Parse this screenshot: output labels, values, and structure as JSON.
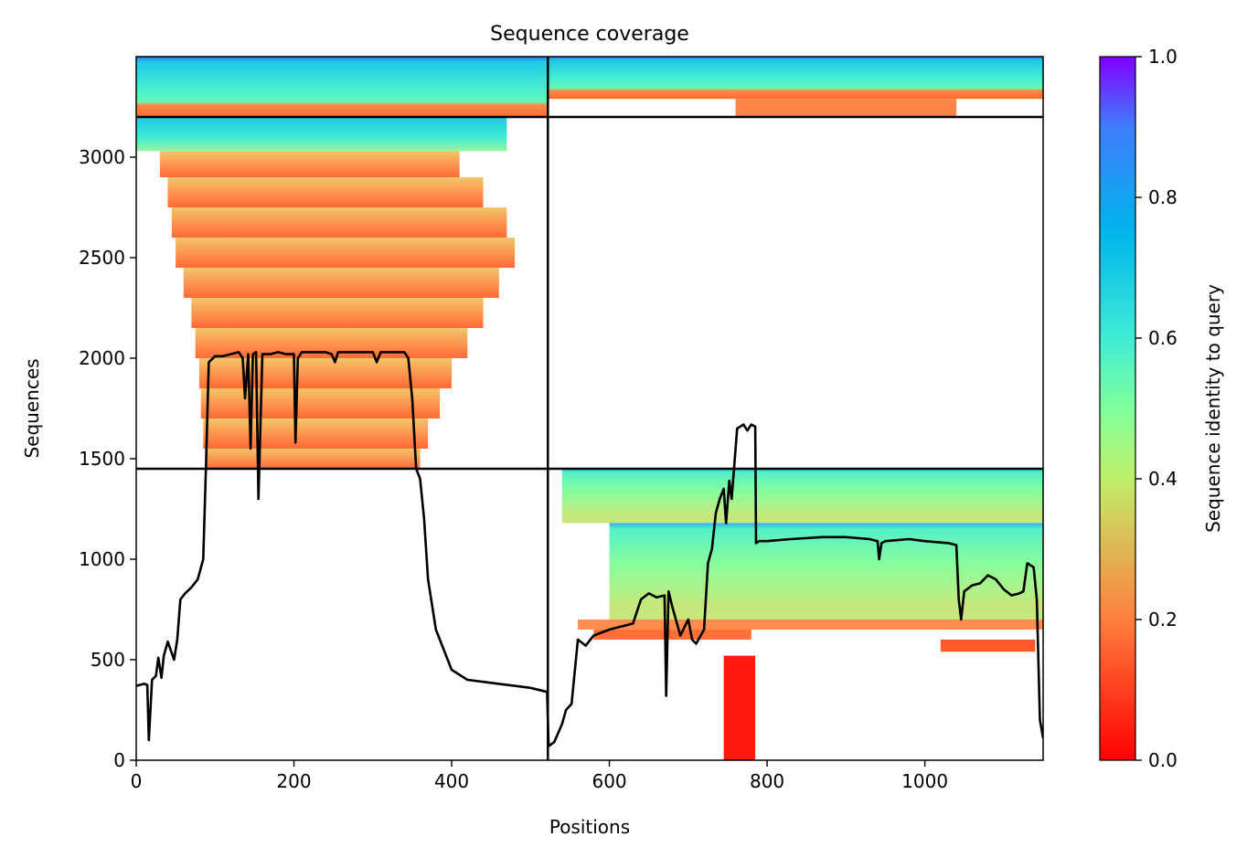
{
  "chart_data": {
    "type": "heatmap",
    "title": "Sequence coverage",
    "xlabel": "Positions",
    "ylabel": "Sequences",
    "xlim": [
      0,
      1150
    ],
    "ylim": [
      0,
      3500
    ],
    "xticks": [
      0,
      200,
      400,
      600,
      800,
      1000
    ],
    "yticks": [
      0,
      500,
      1000,
      1500,
      2000,
      2500,
      3000
    ],
    "grid": false,
    "colorbar": {
      "label": "Sequence identity to query",
      "range": [
        0.0,
        1.0
      ],
      "ticks": [
        "0.0",
        "0.2",
        "0.4",
        "0.6",
        "0.8",
        "1.0"
      ],
      "colormap": "rainbow_r",
      "colors": [
        "#ff0000",
        "#ff8040",
        "#80ff80",
        "#00c0ff",
        "#8000ff"
      ]
    },
    "divider_lines": {
      "color": "#000000",
      "vertical_x": [
        522
      ],
      "horizontal_y": [
        1450,
        3200
      ]
    },
    "coverage_line": {
      "name": "coverage",
      "color": "#000000",
      "x": [
        0,
        10,
        14,
        16,
        20,
        25,
        28,
        32,
        35,
        40,
        48,
        52,
        56,
        62,
        70,
        78,
        85,
        88,
        92,
        100,
        110,
        120,
        130,
        135,
        138,
        142,
        145,
        148,
        152,
        155,
        160,
        170,
        180,
        190,
        200,
        202,
        205,
        210,
        230,
        240,
        248,
        252,
        256,
        270,
        290,
        300,
        305,
        310,
        320,
        330,
        340,
        345,
        350,
        355,
        360,
        365,
        370,
        380,
        390,
        400,
        420,
        440,
        460,
        480,
        500,
        521,
        523,
        530,
        540,
        545,
        552,
        560,
        570,
        580,
        600,
        610,
        620,
        630,
        640,
        650,
        660,
        670,
        672,
        675,
        680,
        690,
        700,
        705,
        710,
        720,
        725,
        730,
        735,
        740,
        745,
        748,
        752,
        755,
        758,
        762,
        766,
        770,
        775,
        780,
        785,
        786,
        790,
        800,
        830,
        870,
        900,
        930,
        940,
        942,
        945,
        950,
        980,
        1000,
        1030,
        1040,
        1043,
        1046,
        1050,
        1060,
        1070,
        1080,
        1090,
        1100,
        1110,
        1120,
        1125,
        1130,
        1138,
        1142,
        1146,
        1150
      ],
      "y": [
        370,
        380,
        375,
        100,
        400,
        420,
        510,
        410,
        520,
        590,
        500,
        600,
        800,
        830,
        860,
        900,
        1000,
        1400,
        1980,
        2010,
        2010,
        2020,
        2030,
        2000,
        1800,
        2020,
        1550,
        2020,
        2030,
        1300,
        2020,
        2020,
        2030,
        2020,
        2020,
        1580,
        2000,
        2030,
        2030,
        2030,
        2020,
        1980,
        2030,
        2030,
        2030,
        2030,
        1980,
        2030,
        2030,
        2030,
        2030,
        2000,
        1800,
        1450,
        1400,
        1200,
        900,
        650,
        550,
        450,
        400,
        390,
        380,
        370,
        360,
        340,
        70,
        90,
        180,
        250,
        280,
        600,
        570,
        620,
        650,
        660,
        670,
        680,
        800,
        830,
        810,
        820,
        320,
        840,
        760,
        620,
        700,
        600,
        580,
        650,
        980,
        1050,
        1230,
        1300,
        1350,
        1180,
        1390,
        1300,
        1450,
        1650,
        1660,
        1670,
        1640,
        1670,
        1660,
        1080,
        1090,
        1090,
        1100,
        1110,
        1110,
        1100,
        1090,
        1000,
        1080,
        1090,
        1100,
        1090,
        1080,
        1070,
        800,
        700,
        840,
        870,
        880,
        920,
        900,
        850,
        820,
        830,
        840,
        980,
        960,
        800,
        200,
        110
      ]
    }
  }
}
